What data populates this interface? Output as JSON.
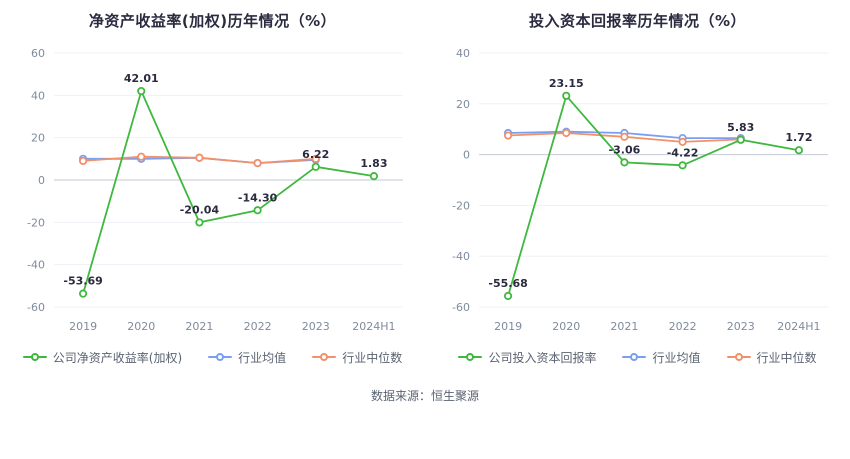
{
  "source": "数据来源：恒生聚源",
  "colors": {
    "company": "#3fb83f",
    "industry_mean": "#7b9ff0",
    "industry_median": "#f2906b",
    "title_text": "#2b2b40",
    "tick_text": "#7f8b9e",
    "zero_line": "#c4cad4"
  },
  "chart_data": [
    {
      "type": "line",
      "title": "净资产收益率(加权)历年情况（%）",
      "x_labels": [
        "2019",
        "2020",
        "2021",
        "2022",
        "2023",
        "2024H1"
      ],
      "ylim": [
        -60,
        60
      ],
      "ytick_step": 20,
      "grid": true,
      "legend_position": "bottom",
      "series": [
        {
          "name": "公司净资产收益率(加权)",
          "color": "#3fb83f",
          "values": [
            -53.69,
            42.01,
            -20.04,
            -14.3,
            6.22,
            1.83
          ],
          "labels": [
            "-53.69",
            "42.01",
            "-20.04",
            "-14.30",
            "6.22",
            "1.83"
          ],
          "show_labels": true
        },
        {
          "name": "行业均值",
          "color": "#7b9ff0",
          "values": [
            10,
            10,
            10.5,
            8,
            9.5,
            null
          ],
          "show_labels": false
        },
        {
          "name": "行业中位数",
          "color": "#f2906b",
          "values": [
            9,
            11,
            10.5,
            8,
            10,
            null
          ],
          "show_labels": false
        }
      ]
    },
    {
      "type": "line",
      "title": "投入资本回报率历年情况（%）",
      "x_labels": [
        "2019",
        "2020",
        "2021",
        "2022",
        "2023",
        "2024H1"
      ],
      "ylim": [
        -60,
        40
      ],
      "ytick_step": 20,
      "grid": true,
      "legend_position": "bottom",
      "series": [
        {
          "name": "公司投入资本回报率",
          "color": "#3fb83f",
          "values": [
            -55.68,
            23.15,
            -3.06,
            -4.22,
            5.83,
            1.72
          ],
          "labels": [
            "-55.68",
            "23.15",
            "-3.06",
            "-4.22",
            "5.83",
            "1.72"
          ],
          "show_labels": true
        },
        {
          "name": "行业均值",
          "color": "#7b9ff0",
          "values": [
            8.5,
            9,
            8.5,
            6.5,
            6.5,
            null
          ],
          "show_labels": false
        },
        {
          "name": "行业中位数",
          "color": "#f2906b",
          "values": [
            7.5,
            8.5,
            7,
            5,
            6,
            null
          ],
          "show_labels": false
        }
      ]
    }
  ]
}
